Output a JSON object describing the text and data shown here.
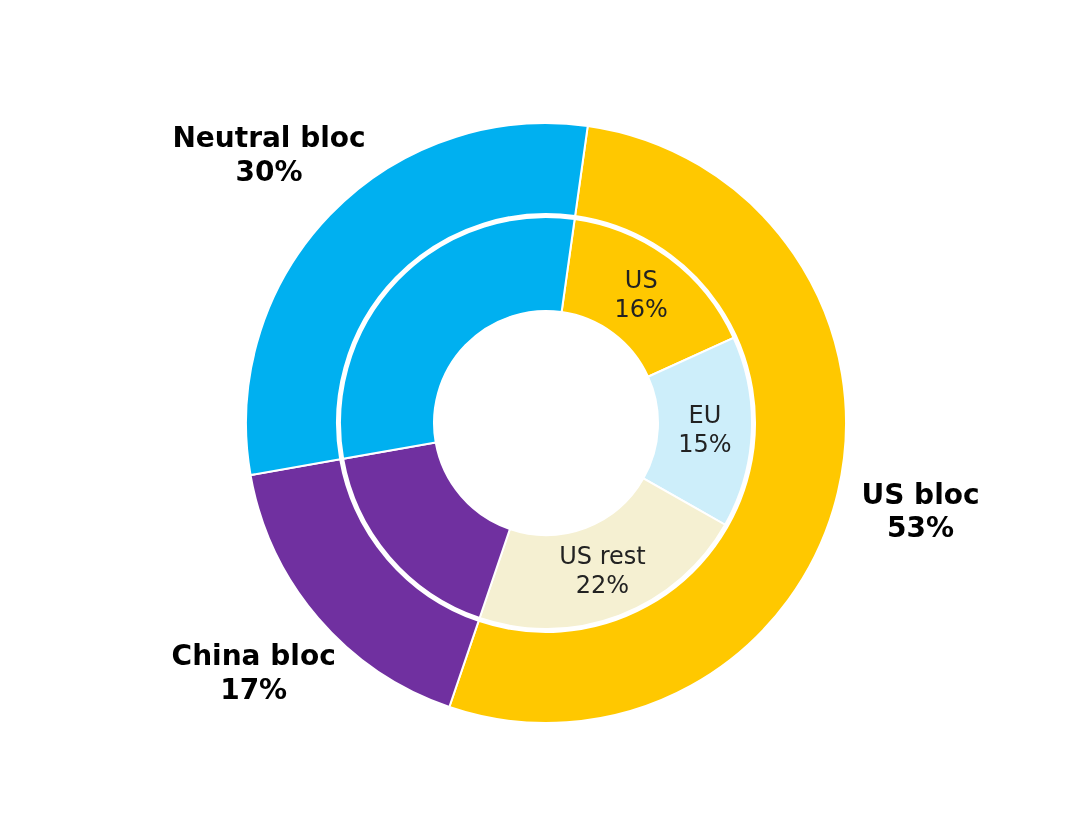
{
  "chart_data": [
    {
      "type": "donut",
      "categories": [
        "US",
        "EU",
        "US rest",
        null,
        null
      ],
      "values": [
        16,
        15,
        22,
        17,
        30
      ],
      "colors": [
        "#ffc800",
        "#cdeefa",
        "#f5f0d2",
        "#7030a0",
        "#00b0f0"
      ],
      "value_labels": [
        "16%",
        "15%",
        "22%",
        null,
        null
      ]
    },
    {
      "type": "donut",
      "categories": [
        "US bloc",
        "China bloc",
        "Neutral bloc"
      ],
      "values": [
        53,
        17,
        30
      ],
      "colors": [
        "#ffc800",
        "#7030a0",
        "#00b0f0"
      ],
      "value_labels": [
        "53%",
        "17%",
        "30%"
      ]
    }
  ]
}
